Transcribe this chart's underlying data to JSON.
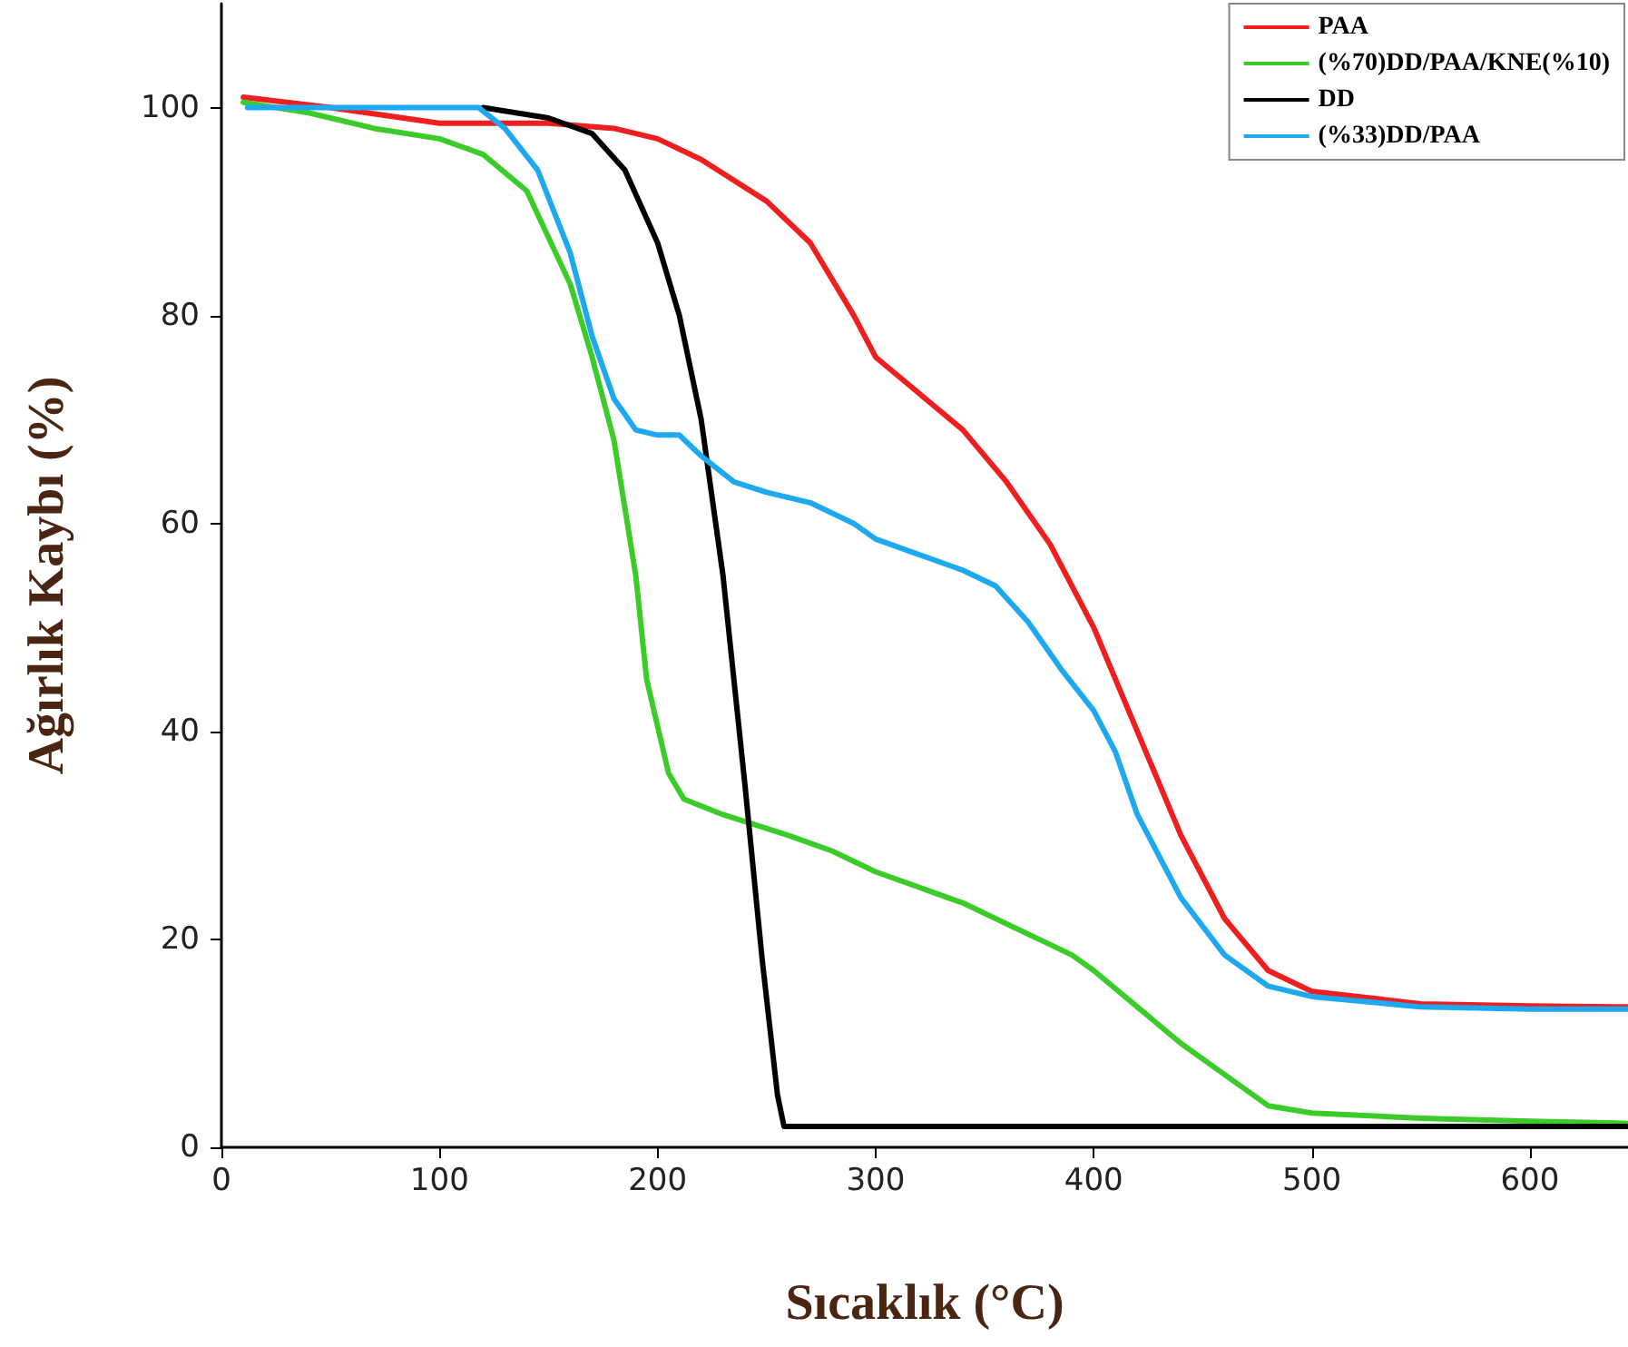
{
  "chart_data": {
    "type": "line",
    "xlabel": "Sıcaklık (°C)",
    "ylabel": "Ağırlık Kaybı (%)",
    "xlim": [
      0,
      645
    ],
    "ylim": [
      0,
      110
    ],
    "xticks": [
      0,
      100,
      200,
      300,
      400,
      500,
      600
    ],
    "yticks": [
      0,
      20,
      40,
      60,
      80,
      100
    ],
    "grid": false,
    "legend": "top right",
    "marker": "none",
    "line_style": "solid",
    "series": [
      {
        "name": "PAA",
        "color": "#f01e1e",
        "x": [
          10,
          50,
          100,
          150,
          180,
          200,
          220,
          250,
          270,
          290,
          300,
          320,
          340,
          360,
          380,
          400,
          420,
          440,
          460,
          480,
          500,
          550,
          600,
          645
        ],
        "values": [
          101,
          100,
          98.5,
          98.5,
          98,
          97,
          95,
          91,
          87,
          80,
          76,
          72.5,
          69,
          64,
          58,
          50,
          40,
          30,
          22,
          17,
          15,
          13.8,
          13.6,
          13.5
        ]
      },
      {
        "name": "(%70)DD/PAA/KNE(%10)",
        "color": "#3ccc2a",
        "x": [
          10,
          40,
          70,
          100,
          120,
          140,
          160,
          170,
          180,
          190,
          195,
          205,
          212,
          230,
          260,
          280,
          300,
          340,
          360,
          380,
          390,
          400,
          420,
          440,
          460,
          480,
          500,
          550,
          600,
          645
        ],
        "values": [
          100.5,
          99.5,
          98,
          97,
          95.5,
          92,
          83,
          76,
          68,
          55,
          45,
          36,
          33.5,
          32,
          30,
          28.5,
          26.5,
          23.5,
          21.5,
          19.5,
          18.5,
          17,
          13.5,
          10,
          7,
          4,
          3.3,
          2.8,
          2.5,
          2.3
        ]
      },
      {
        "name": "DD",
        "color": "#000000",
        "x": [
          120,
          150,
          170,
          185,
          200,
          210,
          220,
          230,
          240,
          248,
          255,
          258,
          300,
          645
        ],
        "values": [
          100,
          99,
          97.5,
          94,
          87,
          80,
          70,
          55,
          35,
          18,
          5,
          2,
          2,
          2
        ]
      },
      {
        "name": "(%33)DD/PAA",
        "color": "#1ea8f0",
        "x": [
          12,
          50,
          100,
          118,
          130,
          145,
          160,
          170,
          180,
          190,
          200,
          210,
          220,
          235,
          250,
          270,
          290,
          300,
          320,
          340,
          355,
          370,
          385,
          400,
          410,
          420,
          440,
          460,
          480,
          500,
          550,
          600,
          645
        ],
        "values": [
          100,
          100,
          100,
          100,
          98,
          94,
          86,
          78,
          72,
          69,
          68.5,
          68.5,
          66.5,
          64,
          63,
          62,
          60,
          58.5,
          57,
          55.5,
          54,
          50.5,
          46,
          42,
          38,
          32,
          24,
          18.5,
          15.5,
          14.5,
          13.5,
          13.3,
          13.3
        ]
      }
    ]
  }
}
